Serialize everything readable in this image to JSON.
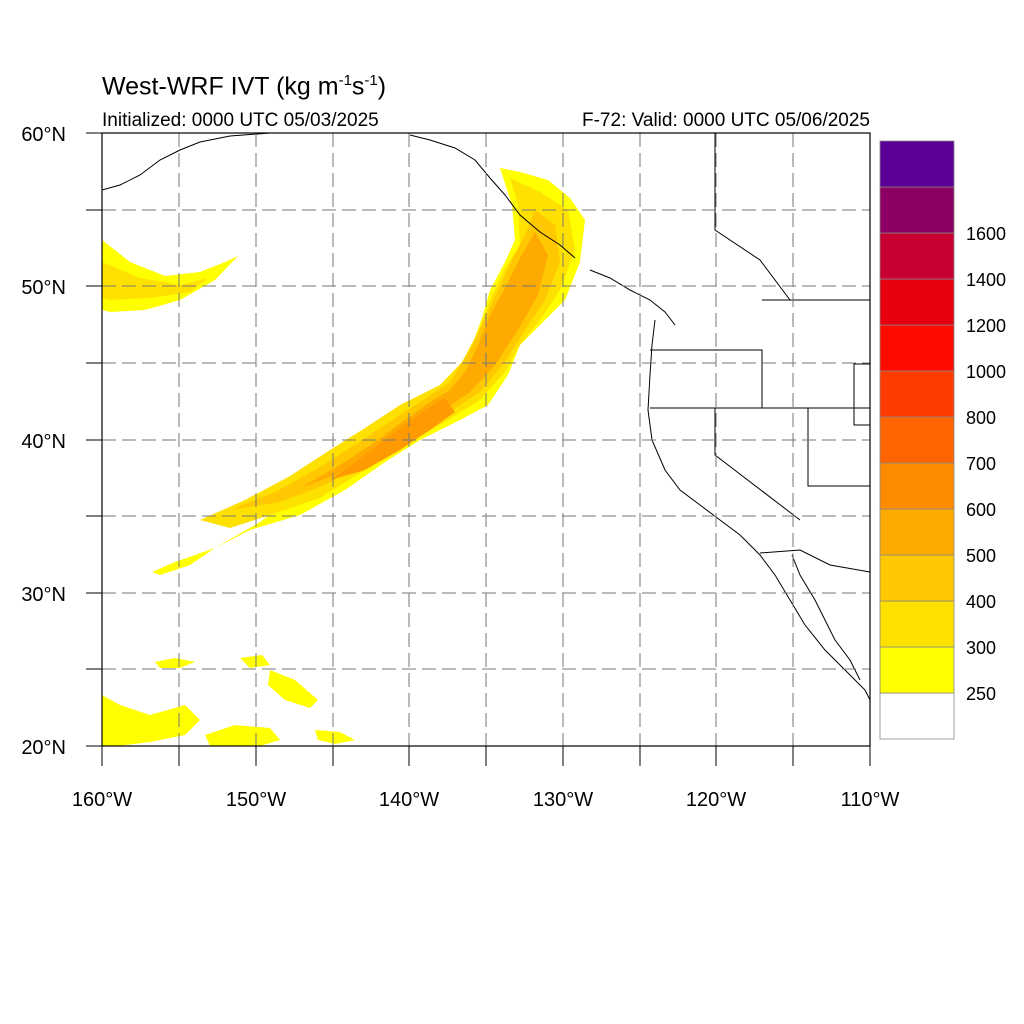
{
  "title": {
    "main_prefix": "West-WRF IVT (kg m",
    "exp1": "-1",
    "mid": "s",
    "exp2": "-1",
    "suffix": ")"
  },
  "subtitle": {
    "initialized": "Initialized: 0000 UTC 05/03/2025",
    "valid": "F-72: Valid: 0000 UTC 05/06/2025"
  },
  "map": {
    "lon_range": [
      -160,
      -110
    ],
    "lat_range": [
      20,
      60
    ],
    "lon_labels": [
      "160°W",
      "150°W",
      "140°W",
      "130°W",
      "120°W",
      "110°W"
    ],
    "lat_labels": [
      "20°N",
      "30°N",
      "40°N",
      "50°N",
      "60°N"
    ],
    "grid": "dashed, every 5°"
  },
  "colorbar": {
    "labels": [
      "250",
      "300",
      "400",
      "500",
      "600",
      "700",
      "800",
      "1000",
      "1200",
      "1400",
      "1600"
    ],
    "colors": [
      "#ffffff",
      "#ffff00",
      "#ffe100",
      "#ffc800",
      "#ffaa00",
      "#ff8c00",
      "#ff6400",
      "#ff3c00",
      "#ff0a00",
      "#e6000f",
      "#c80032",
      "#8c0064",
      "#5a0096"
    ]
  }
}
